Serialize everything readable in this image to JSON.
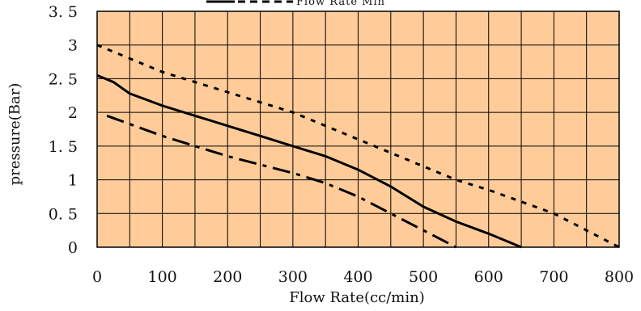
{
  "chart_data": {
    "type": "line",
    "title": "",
    "xlabel": "Flow Rate(cc/min)",
    "ylabel": "pressure(Bar)",
    "xlim": [
      0,
      800
    ],
    "ylim": [
      0,
      3.5
    ],
    "x_ticks": [
      "0",
      "100",
      "200",
      "300",
      "400",
      "500",
      "600",
      "700",
      "800"
    ],
    "y_ticks": [
      "0",
      "0.5",
      "1",
      "1.5",
      "2",
      "2.5",
      "3",
      "3.5"
    ],
    "grid": true,
    "background_color": "#FFCC99",
    "legend": {
      "placement": "top",
      "text": "Flow Rate Min"
    },
    "series": [
      {
        "style": "dotted",
        "points": [
          [
            0,
            3.0
          ],
          [
            100,
            2.6
          ],
          [
            200,
            2.3
          ],
          [
            300,
            2.0
          ],
          [
            400,
            1.6
          ],
          [
            500,
            1.2
          ],
          [
            550,
            1.0
          ],
          [
            600,
            0.85
          ],
          [
            700,
            0.5
          ],
          [
            800,
            0.0
          ]
        ]
      },
      {
        "style": "solid",
        "points": [
          [
            0,
            2.55
          ],
          [
            25,
            2.45
          ],
          [
            50,
            2.28
          ],
          [
            100,
            2.1
          ],
          [
            150,
            1.95
          ],
          [
            200,
            1.8
          ],
          [
            250,
            1.65
          ],
          [
            300,
            1.5
          ],
          [
            350,
            1.35
          ],
          [
            400,
            1.15
          ],
          [
            450,
            0.9
          ],
          [
            500,
            0.6
          ],
          [
            550,
            0.38
          ],
          [
            600,
            0.2
          ],
          [
            650,
            0.0
          ]
        ]
      },
      {
        "style": "dashdot",
        "points": [
          [
            15,
            1.95
          ],
          [
            100,
            1.65
          ],
          [
            200,
            1.35
          ],
          [
            300,
            1.1
          ],
          [
            350,
            0.95
          ],
          [
            400,
            0.75
          ],
          [
            450,
            0.5
          ],
          [
            500,
            0.25
          ],
          [
            550,
            0.0
          ]
        ]
      }
    ]
  }
}
